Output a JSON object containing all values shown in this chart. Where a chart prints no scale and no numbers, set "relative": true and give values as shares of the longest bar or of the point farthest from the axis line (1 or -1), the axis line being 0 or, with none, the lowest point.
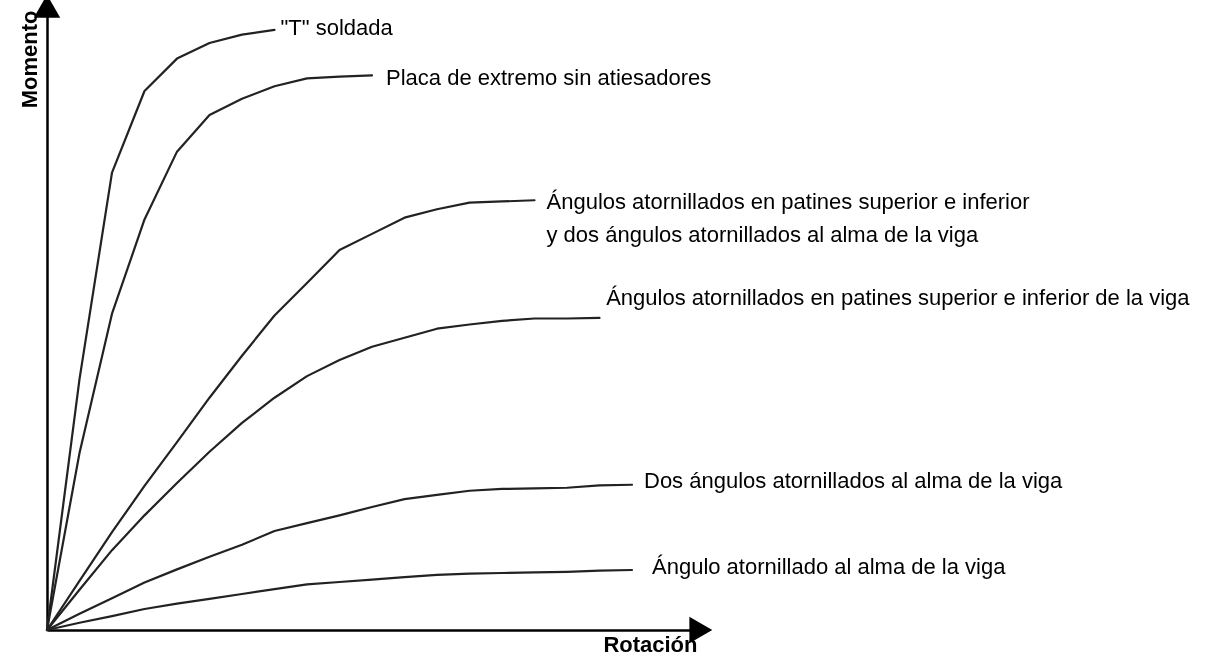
{
  "chart_data": {
    "type": "line",
    "xlabel": "Rotación",
    "ylabel": "Momento",
    "relative": true,
    "legend": false,
    "grid": false,
    "marker": "none",
    "line_style": "solid",
    "categories": [
      null,
      null,
      null,
      null,
      null,
      null,
      null,
      null,
      null,
      null,
      null,
      null,
      null,
      null,
      null,
      null,
      null,
      null,
      null
    ],
    "series": [
      {
        "name": "\"T\" soldada",
        "color": "#222222",
        "values": [
          0,
          0.418,
          0.762,
          0.898,
          0.952,
          0.978,
          0.992,
          1,
          null,
          null,
          null,
          null,
          null,
          null,
          null,
          null,
          null,
          null,
          null
        ]
      },
      {
        "name": "Placa de extremo sin atiesadores",
        "color": "#222222",
        "values": [
          0,
          0.295,
          0.527,
          0.684,
          0.797,
          0.858,
          0.885,
          0.906,
          0.919,
          0.922,
          0.924,
          null,
          null,
          null,
          null,
          null,
          null,
          null,
          null
        ]
      },
      {
        "name": "Ángulos atornillados en patines superior e inferior\ny dos ángulos atornillados al alma de la viga",
        "color": "#222222",
        "values": [
          0,
          0.082,
          0.163,
          0.24,
          0.313,
          0.387,
          0.457,
          0.524,
          0.578,
          0.633,
          0.66,
          0.687,
          0.701,
          0.712,
          0.714,
          0.716,
          null,
          null,
          null
        ]
      },
      {
        "name": "Ángulos atornillados en patines superior e inferior de la viga",
        "color": "#222222",
        "values": [
          0,
          0.067,
          0.133,
          0.191,
          0.245,
          0.297,
          0.345,
          0.387,
          0.423,
          0.45,
          0.472,
          0.487,
          0.502,
          0.509,
          0.515,
          0.519,
          0.519,
          0.52,
          null
        ]
      },
      {
        "name": "Dos ángulos atornillados al alma de la viga",
        "color": "#222222",
        "values": [
          0,
          0.027,
          0.053,
          0.079,
          0.101,
          0.122,
          0.142,
          0.165,
          0.178,
          0.191,
          0.205,
          0.218,
          0.225,
          0.232,
          0.235,
          0.236,
          0.237,
          0.241,
          0.242
        ]
      },
      {
        "name": "Ángulo atornillado al alma de la viga",
        "color": "#222222",
        "values": [
          0,
          0.012,
          0.023,
          0.035,
          0.044,
          0.052,
          0.06,
          0.068,
          0.076,
          0.08,
          0.084,
          0.088,
          0.092,
          0.094,
          0.095,
          0.096,
          0.097,
          0.099,
          0.1
        ]
      }
    ]
  }
}
